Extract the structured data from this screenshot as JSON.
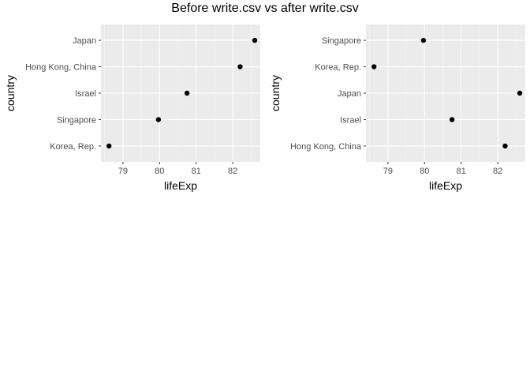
{
  "title": "Before write.csv vs after write.csv",
  "colors": {
    "panel": "#ebebeb",
    "grid_major": "#ffffff",
    "grid_minor": "#f5f5f5",
    "point": "#000000",
    "tick_text": "#4d4d4d",
    "axis_title": "#000000"
  },
  "chart_data": [
    {
      "type": "scatter",
      "xlabel": "lifeExp",
      "ylabel": "country",
      "xlim": [
        78.4,
        82.75
      ],
      "xticks": [
        79,
        80,
        81,
        82
      ],
      "xtick_labels": [
        "79",
        "80",
        "81",
        "82"
      ],
      "y_categories": [
        "Japan",
        "Hong Kong, China",
        "Israel",
        "Singapore",
        "Korea, Rep."
      ],
      "points": [
        {
          "country": "Japan",
          "lifeExp": 82.6
        },
        {
          "country": "Hong Kong, China",
          "lifeExp": 82.2
        },
        {
          "country": "Israel",
          "lifeExp": 80.75
        },
        {
          "country": "Singapore",
          "lifeExp": 79.97
        },
        {
          "country": "Korea, Rep.",
          "lifeExp": 78.62
        }
      ],
      "grid": true
    },
    {
      "type": "scatter",
      "xlabel": "lifeExp",
      "ylabel": "country",
      "xlim": [
        78.4,
        82.75
      ],
      "xticks": [
        79,
        80,
        81,
        82
      ],
      "xtick_labels": [
        "79",
        "80",
        "81",
        "82"
      ],
      "y_categories": [
        "Singapore",
        "Korea, Rep.",
        "Japan",
        "Israel",
        "Hong Kong, China"
      ],
      "points": [
        {
          "country": "Singapore",
          "lifeExp": 79.97
        },
        {
          "country": "Korea, Rep.",
          "lifeExp": 78.62
        },
        {
          "country": "Japan",
          "lifeExp": 82.6
        },
        {
          "country": "Israel",
          "lifeExp": 80.75
        },
        {
          "country": "Hong Kong, China",
          "lifeExp": 82.2
        }
      ],
      "grid": true
    }
  ]
}
